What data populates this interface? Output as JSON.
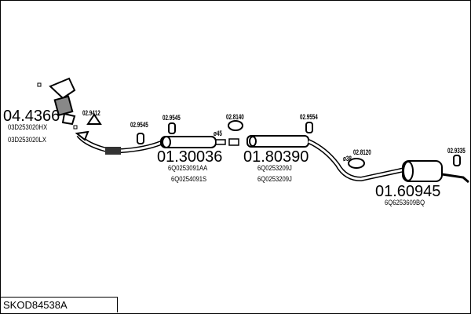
{
  "diagram_code": "SKOD84538A",
  "parts": [
    {
      "number": "04.4366",
      "oem": [
        "03D253020HX",
        "03D253020LX"
      ]
    },
    {
      "number": "01.30036",
      "oem": [
        "6Q0253091AA",
        "6Q0254091S"
      ]
    },
    {
      "number": "01.80390",
      "oem": [
        "6Q0253209J",
        "6Q0253209J"
      ]
    },
    {
      "number": "01.60945",
      "oem": [
        "6Q6253609BQ"
      ]
    }
  ],
  "accessories": [
    "02.9412",
    "02.9545",
    "02.9545",
    "02.8140",
    "02.9554",
    "02.8120",
    "02.9335"
  ],
  "diameters": [
    "ø45",
    "ø38"
  ]
}
